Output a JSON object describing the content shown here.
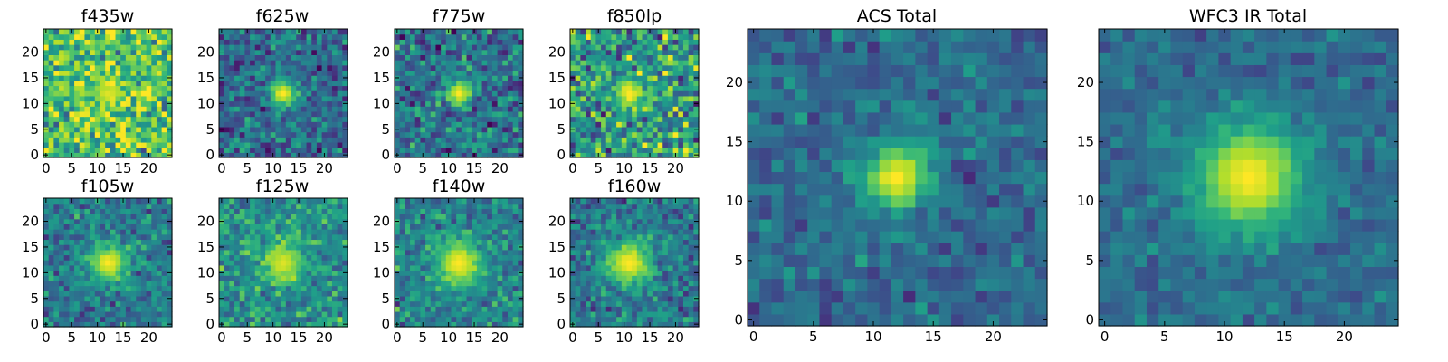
{
  "chart_data": [
    {
      "type": "heatmap",
      "title": "f435w",
      "xticks": [
        0,
        5,
        10,
        15,
        20
      ],
      "yticks": [
        0,
        5,
        10,
        15,
        20
      ],
      "xlim": [
        -0.5,
        24.5
      ],
      "ylim": [
        -0.5,
        24.5
      ],
      "grid_size": 25,
      "source_center": [
        12,
        12
      ],
      "source_radius": 2.0,
      "source_level": 0.95,
      "background_level": 0.72,
      "noise": 0.18,
      "colormap": "viridis",
      "grid": false
    },
    {
      "type": "heatmap",
      "title": "f625w",
      "xticks": [
        0,
        5,
        10,
        15,
        20
      ],
      "yticks": [
        0,
        5,
        10,
        15,
        20
      ],
      "xlim": [
        -0.5,
        24.5
      ],
      "ylim": [
        -0.5,
        24.5
      ],
      "grid_size": 25,
      "source_center": [
        12,
        12
      ],
      "source_radius": 1.8,
      "source_level": 1.0,
      "background_level": 0.35,
      "noise": 0.14,
      "colormap": "viridis",
      "grid": false
    },
    {
      "type": "heatmap",
      "title": "f775w",
      "xticks": [
        0,
        5,
        10,
        15,
        20
      ],
      "yticks": [
        0,
        5,
        10,
        15,
        20
      ],
      "xlim": [
        -0.5,
        24.5
      ],
      "ylim": [
        -0.5,
        24.5
      ],
      "grid_size": 25,
      "source_center": [
        12,
        12
      ],
      "source_radius": 1.8,
      "source_level": 1.0,
      "background_level": 0.38,
      "noise": 0.15,
      "colormap": "viridis",
      "grid": false
    },
    {
      "type": "heatmap",
      "title": "f850lp",
      "xticks": [
        0,
        5,
        10,
        15,
        20
      ],
      "yticks": [
        0,
        5,
        10,
        15,
        20
      ],
      "xlim": [
        -0.5,
        24.5
      ],
      "ylim": [
        -0.5,
        24.5
      ],
      "grid_size": 25,
      "source_center": [
        11,
        12
      ],
      "source_radius": 2.0,
      "source_level": 1.0,
      "background_level": 0.55,
      "noise": 0.2,
      "colormap": "viridis",
      "grid": false
    },
    {
      "type": "heatmap",
      "title": "f105w",
      "xticks": [
        0,
        5,
        10,
        15,
        20
      ],
      "yticks": [
        0,
        5,
        10,
        15,
        20
      ],
      "xlim": [
        -0.5,
        24.5
      ],
      "ylim": [
        -0.5,
        24.5
      ],
      "grid_size": 25,
      "source_center": [
        12,
        12
      ],
      "source_radius": 2.5,
      "source_level": 1.0,
      "background_level": 0.42,
      "noise": 0.12,
      "colormap": "viridis",
      "grid": false
    },
    {
      "type": "heatmap",
      "title": "f125w",
      "xticks": [
        0,
        5,
        10,
        15,
        20
      ],
      "yticks": [
        0,
        5,
        10,
        15,
        20
      ],
      "xlim": [
        -0.5,
        24.5
      ],
      "ylim": [
        -0.5,
        24.5
      ],
      "grid_size": 25,
      "source_center": [
        12,
        12
      ],
      "source_radius": 2.8,
      "source_level": 0.95,
      "background_level": 0.5,
      "noise": 0.13,
      "colormap": "viridis",
      "grid": false
    },
    {
      "type": "heatmap",
      "title": "f140w",
      "xticks": [
        0,
        5,
        10,
        15,
        20
      ],
      "yticks": [
        0,
        5,
        10,
        15,
        20
      ],
      "xlim": [
        -0.5,
        24.5
      ],
      "ylim": [
        -0.5,
        24.5
      ],
      "grid_size": 25,
      "source_center": [
        12,
        12
      ],
      "source_radius": 3.0,
      "source_level": 1.0,
      "background_level": 0.45,
      "noise": 0.12,
      "colormap": "viridis",
      "grid": false
    },
    {
      "type": "heatmap",
      "title": "f160w",
      "xticks": [
        0,
        5,
        10,
        15,
        20
      ],
      "yticks": [
        0,
        5,
        10,
        15,
        20
      ],
      "xlim": [
        -0.5,
        24.5
      ],
      "ylim": [
        -0.5,
        24.5
      ],
      "grid_size": 25,
      "source_center": [
        11,
        12
      ],
      "source_radius": 3.0,
      "source_level": 1.0,
      "background_level": 0.4,
      "noise": 0.12,
      "colormap": "viridis",
      "grid": false
    },
    {
      "type": "heatmap",
      "title": "ACS Total",
      "xticks": [
        0,
        5,
        10,
        15,
        20
      ],
      "yticks": [
        0,
        5,
        10,
        15,
        20
      ],
      "xlim": [
        -0.5,
        24.5
      ],
      "ylim": [
        -0.5,
        24.5
      ],
      "grid_size": 25,
      "source_center": [
        12,
        12
      ],
      "source_radius": 1.9,
      "source_level": 1.0,
      "background_level": 0.35,
      "noise": 0.09,
      "colormap": "viridis",
      "grid": false
    },
    {
      "type": "heatmap",
      "title": "WFC3 IR Total",
      "xticks": [
        0,
        5,
        10,
        15,
        20
      ],
      "yticks": [
        0,
        5,
        10,
        15,
        20
      ],
      "xlim": [
        -0.5,
        24.5
      ],
      "ylim": [
        -0.5,
        24.5
      ],
      "grid_size": 25,
      "source_center": [
        12,
        12
      ],
      "source_radius": 3.2,
      "source_level": 1.0,
      "background_level": 0.36,
      "noise": 0.07,
      "colormap": "viridis",
      "grid": false
    }
  ]
}
